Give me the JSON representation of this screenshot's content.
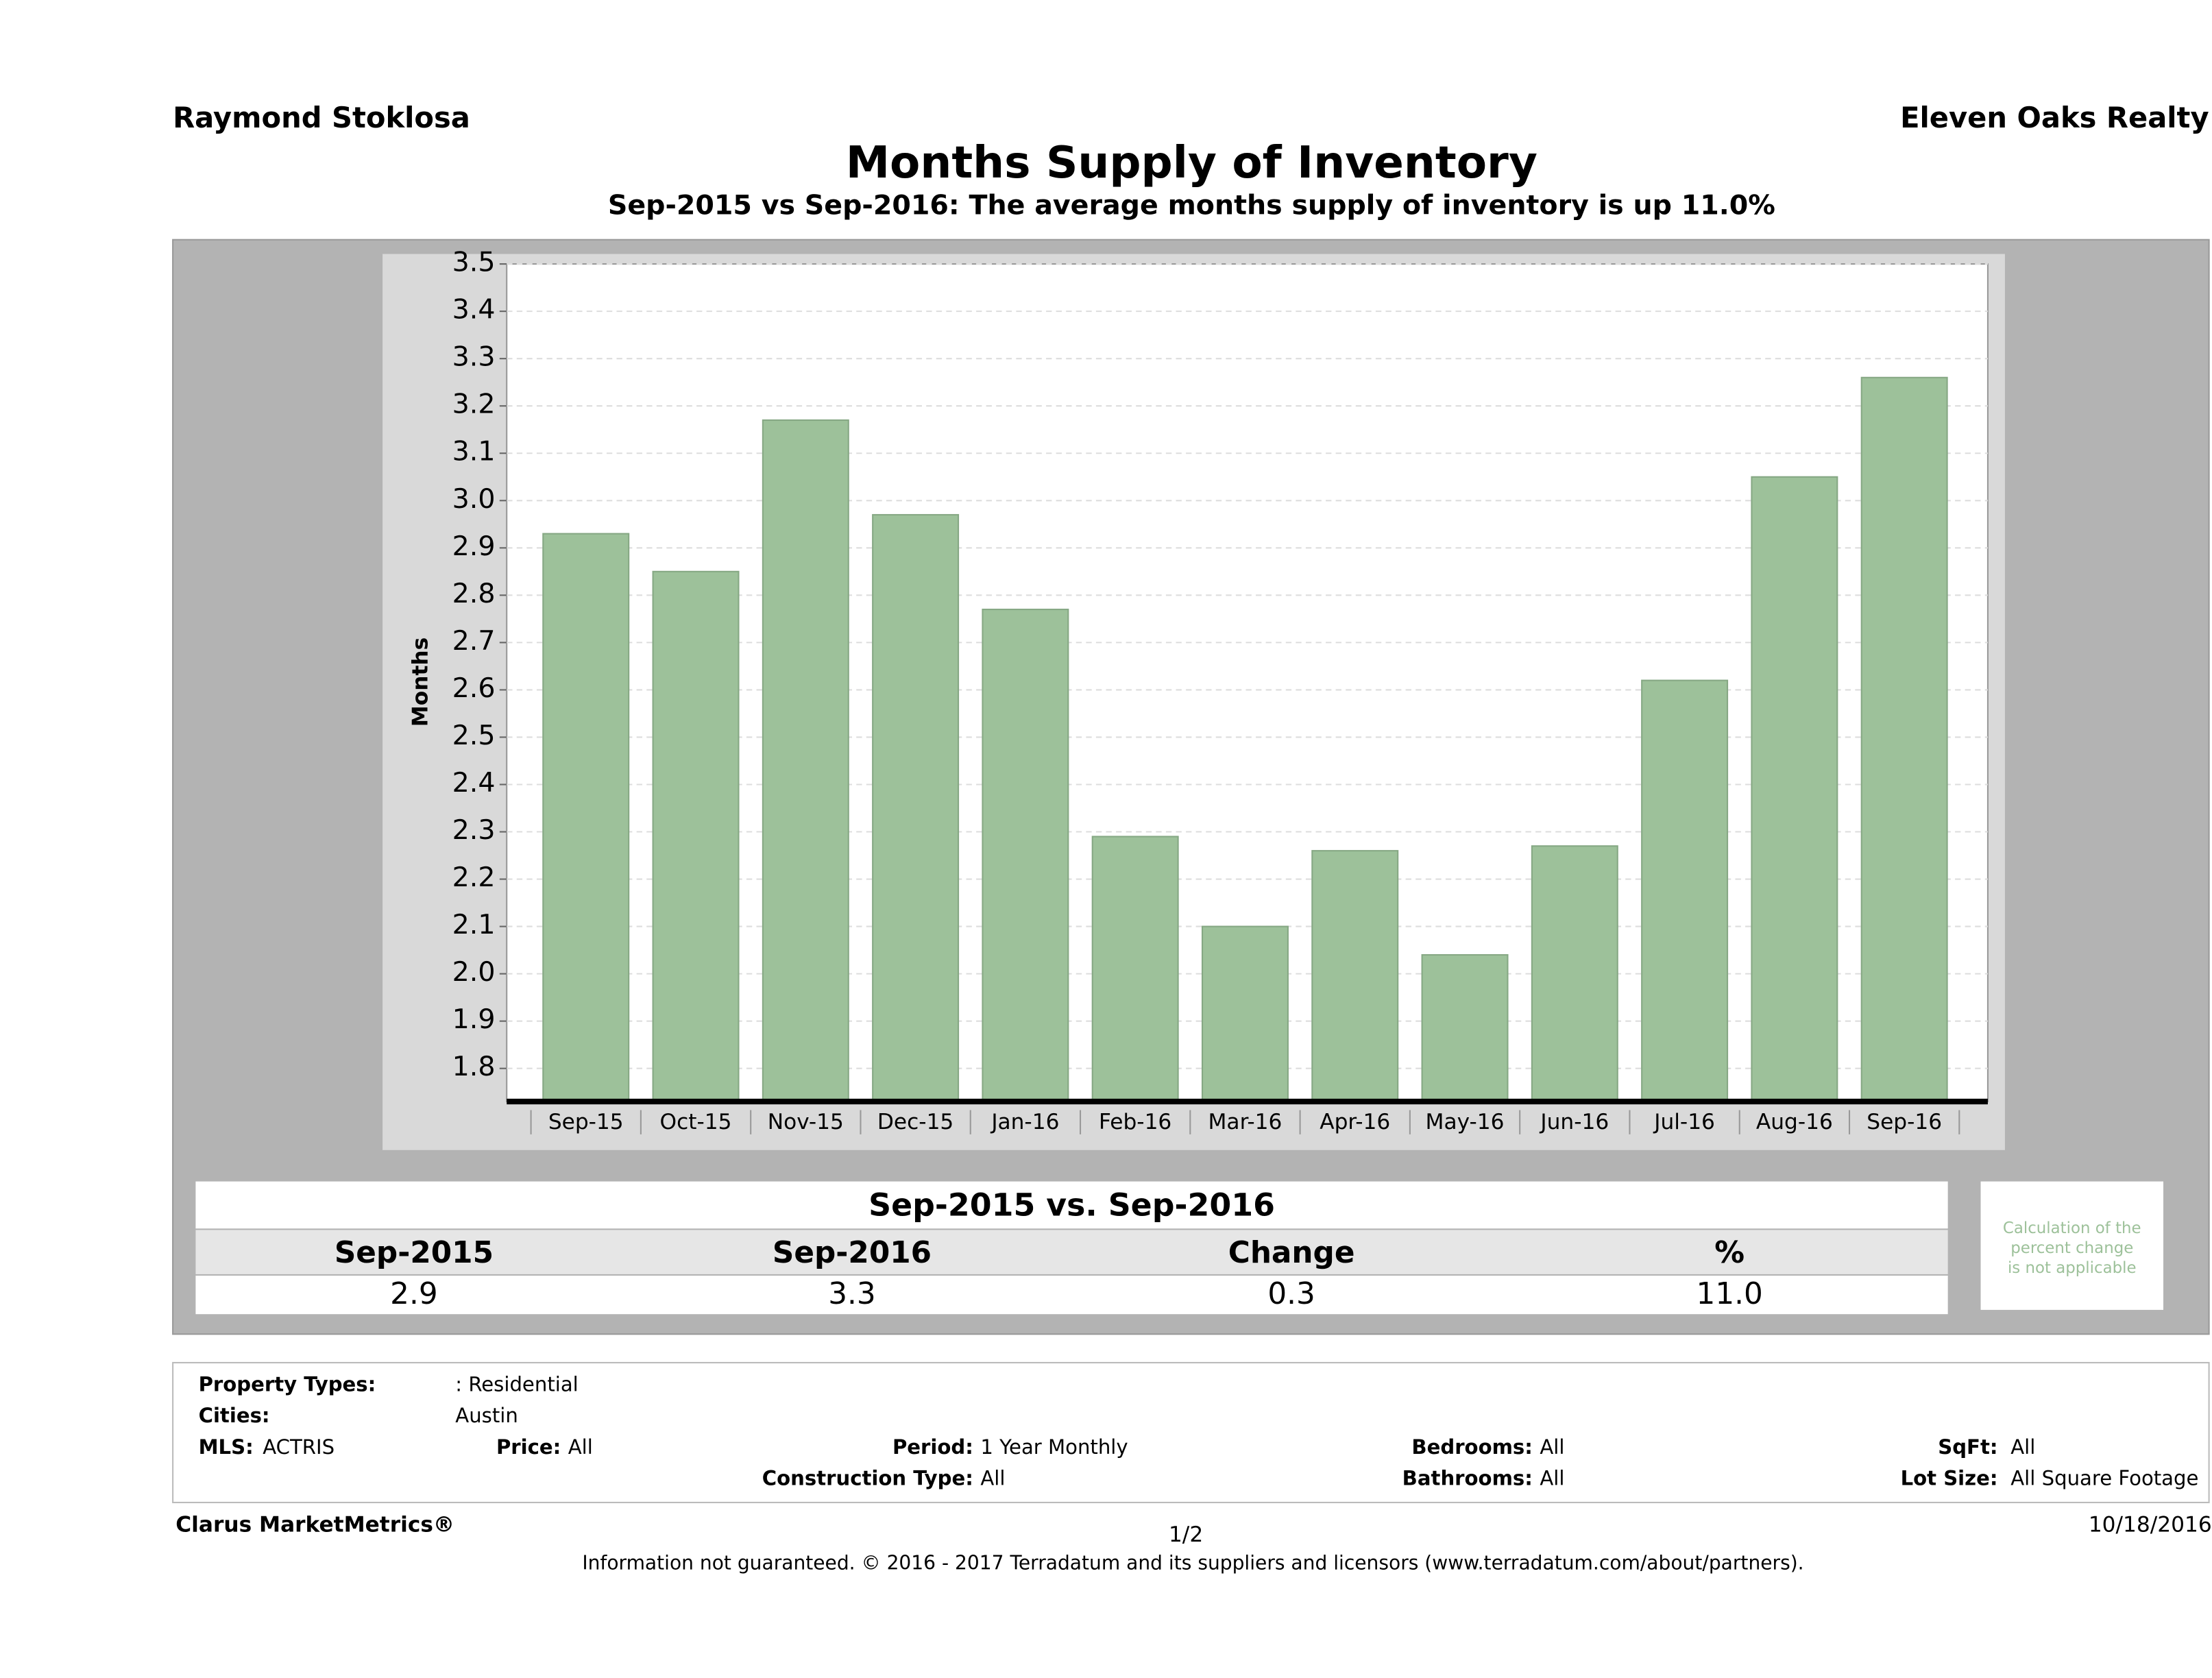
{
  "header": {
    "agent": "Raymond Stoklosa",
    "company": "Eleven Oaks Realty"
  },
  "chart_data": {
    "type": "bar",
    "title": "Months Supply of Inventory",
    "subtitle": "Sep-2015 vs Sep-2016: The average months supply of inventory is up 11.0%",
    "y_label": "Months",
    "categories": [
      "Sep-15",
      "Oct-15",
      "Nov-15",
      "Dec-15",
      "Jan-16",
      "Feb-16",
      "Mar-16",
      "Apr-16",
      "May-16",
      "Jun-16",
      "Jul-16",
      "Aug-16",
      "Sep-16"
    ],
    "values": [
      2.93,
      2.85,
      3.17,
      2.97,
      2.77,
      2.29,
      2.1,
      2.26,
      2.04,
      2.27,
      2.62,
      3.05,
      3.26
    ],
    "color": "#9dc19a",
    "ylim": [
      1.73,
      3.5
    ],
    "yticks": [
      1.8,
      1.9,
      {
        "value": 2,
        "label": "2.0"
      },
      2.1,
      2.2,
      2.3,
      2.4,
      2.5,
      2.6,
      2.7,
      2.8,
      2.9,
      {
        "value": 3,
        "label": "3.0"
      },
      3.1,
      3.2,
      3.3,
      3.4,
      3.5
    ],
    "grid": true
  },
  "summary": {
    "title": "Sep-2015 vs. Sep-2016",
    "headers": [
      "Sep-2015",
      "Sep-2016",
      "Change",
      "%"
    ],
    "values": [
      "2.9",
      "3.3",
      "0.3",
      "11.0"
    ],
    "note": [
      "Calculation of the",
      "percent change",
      "is not applicable"
    ]
  },
  "filters": {
    "property_types_label": "Property Types:",
    "property_types": ": Residential",
    "cities_label": "Cities:",
    "cities": "Austin",
    "mls_label": "MLS:",
    "mls": "ACTRIS",
    "price_label": "Price:",
    "price": "All",
    "period_label": "Period:",
    "period": "1 Year Monthly",
    "construction_label": "Construction Type:",
    "construction": "All",
    "bedrooms_label": "Bedrooms:",
    "bedrooms": "All",
    "bathrooms_label": "Bathrooms:",
    "bathrooms": "All",
    "sqft_label": "SqFt:",
    "sqft": "All",
    "lot_label": "Lot Size:",
    "lot": "All Square Footage"
  },
  "footer": {
    "brand": "Clarus MarketMetrics®",
    "page": "1/2",
    "date": "10/18/2016",
    "disclaimer": "Information not guaranteed. © 2016 - 2017 Terradatum and its suppliers and licensors (www.terradatum.com/about/partners)."
  }
}
